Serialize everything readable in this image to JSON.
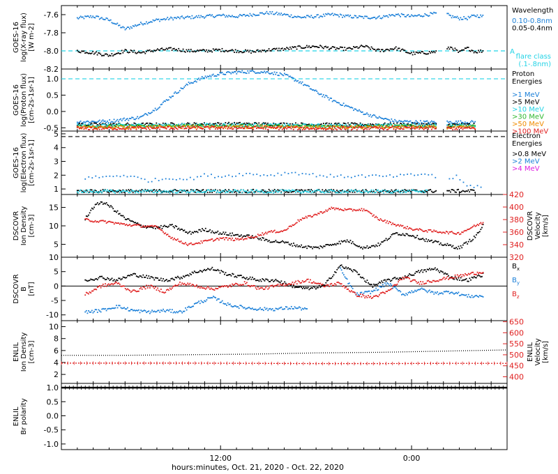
{
  "colors": {
    "axis": "#000000",
    "blue": "#1a7fd8",
    "black": "#000000",
    "cyan": "#22d3e6",
    "green": "#2eb82e",
    "orange": "#f08c00",
    "red": "#e02020",
    "magenta": "#e020e0"
  },
  "xaxis": {
    "title": "hours:minutes, Oct. 21, 2020 - Oct. 22, 2020",
    "ticks": [
      {
        "hour": 12,
        "label": "12:00"
      },
      {
        "hour": 24,
        "label": "0:00"
      }
    ],
    "range_hours": [
      2.0,
      30.0
    ]
  },
  "chart_data": [
    {
      "id": "xray",
      "type": "scatter",
      "ylabel": [
        "GOES-16",
        "log(X-ray flux)",
        "[W m-2]"
      ],
      "ylim": [
        -8.2,
        -7.5
      ],
      "yticks": [
        -7.6,
        -7.8,
        -8.0,
        -8.2
      ],
      "ytick_labels": [
        "-7.6",
        "-7.8",
        "-8.0",
        "-8.2"
      ],
      "legend": {
        "title": "Wavelength",
        "entries": [
          {
            "text": "0.10-0.8nm",
            "color": "blue"
          },
          {
            "text": "0.05-0.4nm",
            "color": "black"
          }
        ]
      },
      "threshold": {
        "value": -8.0,
        "color": "cyan",
        "label": "A",
        "note": [
          "flare class",
          "(.1-.8nm)"
        ]
      },
      "series": [
        {
          "color": "blue",
          "x": [
            3.0,
            4.0,
            5.0,
            6.0,
            7.0,
            8.0,
            9.0,
            10.0,
            11.0,
            12.0,
            13.0,
            14.0,
            15.0,
            16.0,
            17.0,
            18.0,
            19.0,
            20.0,
            21.0,
            22.0,
            23.0,
            24.0,
            25.0,
            26.0,
            26.5,
            27.0,
            27.5,
            28.0,
            28.5
          ],
          "y": [
            -7.64,
            -7.62,
            -7.66,
            -7.76,
            -7.7,
            -7.66,
            -7.64,
            -7.63,
            -7.62,
            -7.61,
            -7.62,
            -7.6,
            -7.58,
            -7.6,
            -7.63,
            -7.62,
            -7.6,
            -7.62,
            -7.63,
            -7.63,
            -7.6,
            -7.62,
            -7.6,
            -7.58,
            -7.62,
            -7.64,
            -7.64,
            -7.61,
            -7.62
          ]
        },
        {
          "color": "black",
          "x": [
            3.0,
            4.0,
            5.0,
            6.0,
            7.0,
            8.0,
            9.0,
            10.0,
            11.0,
            12.0,
            13.0,
            14.0,
            15.0,
            16.0,
            17.0,
            18.0,
            19.0,
            20.0,
            21.0,
            22.0,
            23.0,
            24.0,
            25.0,
            26.0,
            26.5,
            27.0,
            27.5,
            28.0,
            28.5
          ],
          "y": [
            -8.0,
            -8.02,
            -8.05,
            -8.0,
            -8.02,
            -7.99,
            -7.98,
            -8.0,
            -8.0,
            -7.99,
            -8.0,
            -8.01,
            -7.99,
            -7.98,
            -7.96,
            -7.95,
            -7.97,
            -7.98,
            -7.95,
            -8.0,
            -7.97,
            -8.03,
            -8.02,
            -8.0,
            -7.96,
            -8.02,
            -7.97,
            -8.01,
            -8.0
          ]
        }
      ]
    },
    {
      "id": "proton",
      "type": "scatter",
      "ylabel": [
        "GOES-16",
        "log(Proton flux)",
        "[cm-2s-1sr-1]"
      ],
      "ylim": [
        -0.6,
        1.3
      ],
      "yticks": [
        1.0,
        0.5,
        0.0,
        -0.5
      ],
      "ytick_labels": [
        "1.0",
        "0.5",
        "0.0",
        "-0.5"
      ],
      "legend": {
        "title": [
          "Proton",
          "Energies"
        ],
        "entries": [
          {
            "text": ">1 MeV",
            "color": "blue"
          },
          {
            "text": ">5 MeV",
            "color": "black"
          },
          {
            "text": ">10 MeV",
            "color": "cyan"
          },
          {
            "text": ">30 MeV",
            "color": "green"
          },
          {
            "text": ">50 MeV",
            "color": "orange"
          },
          {
            "text": ">100 MeV",
            "color": "red"
          }
        ]
      },
      "threshold": {
        "value": 1.0,
        "color": "cyan"
      },
      "series": [
        {
          "color": "blue",
          "x": [
            3.0,
            5.0,
            7.0,
            8.0,
            9.0,
            10.0,
            11.0,
            12.0,
            13.0,
            14.0,
            15.0,
            16.0,
            17.0,
            18.0,
            19.0,
            20.0,
            21.0,
            22.0,
            23.0,
            24.0,
            25.0,
            26.5,
            28.0
          ],
          "y": [
            -0.32,
            -0.3,
            -0.18,
            0.1,
            0.5,
            0.85,
            1.05,
            1.15,
            1.2,
            1.22,
            1.2,
            1.12,
            0.9,
            0.6,
            0.35,
            0.15,
            -0.05,
            -0.2,
            -0.3,
            -0.32,
            -0.33,
            -0.33,
            -0.33
          ]
        },
        {
          "color": "black",
          "x": [
            3.0,
            8.0,
            13.0,
            18.0,
            23.0,
            28.0
          ],
          "y": [
            -0.4,
            -0.4,
            -0.38,
            -0.4,
            -0.4,
            -0.41
          ]
        },
        {
          "color": "cyan",
          "x": [
            3.0,
            8.0,
            13.0,
            18.0,
            23.0,
            28.0
          ],
          "y": [
            -0.43,
            -0.42,
            -0.41,
            -0.43,
            -0.43,
            -0.43
          ]
        },
        {
          "color": "green",
          "x": [
            3.0,
            8.0,
            13.0,
            18.0,
            23.0,
            28.0
          ],
          "y": [
            -0.46,
            -0.45,
            -0.44,
            -0.46,
            -0.45,
            -0.46
          ]
        },
        {
          "color": "orange",
          "x": [
            3.0,
            8.0,
            13.0,
            18.0,
            23.0,
            28.0
          ],
          "y": [
            -0.49,
            -0.48,
            -0.47,
            -0.49,
            -0.48,
            -0.49
          ]
        },
        {
          "color": "red",
          "x": [
            3.0,
            8.0,
            13.0,
            18.0,
            23.0,
            28.0
          ],
          "y": [
            -0.52,
            -0.51,
            -0.5,
            -0.52,
            -0.51,
            -0.52
          ]
        }
      ]
    },
    {
      "id": "electron",
      "type": "scatter",
      "ylabel": [
        "GOES-16",
        "log(Electron flux)",
        "[cm-2s-1sr-1]"
      ],
      "ylim": [
        0.6,
        5.2
      ],
      "yticks": [
        5,
        4,
        3,
        2,
        1
      ],
      "ytick_labels": [
        "5",
        "4",
        "3",
        "2",
        "1"
      ],
      "legend": {
        "title": [
          "Electron",
          "Energies"
        ],
        "entries": [
          {
            "text": ">0.8 MeV",
            "color": "black"
          },
          {
            "text": ">2 MeV",
            "color": "blue"
          },
          {
            "text": ">4 MeV",
            "color": "magenta"
          }
        ]
      },
      "threshold": {
        "value": 4.8,
        "color": "black"
      },
      "series": [
        {
          "color": "blue",
          "x": [
            3.5,
            5.0,
            6.0,
            7.5,
            9.0,
            10.0,
            11.0,
            12.0,
            13.5,
            15.0,
            16.5,
            18.0,
            19.5,
            21.0,
            22.5,
            24.0,
            25.0,
            26.0,
            26.8,
            27.5,
            28.5
          ],
          "y": [
            1.8,
            1.9,
            2.0,
            1.6,
            1.8,
            1.7,
            2.0,
            1.9,
            2.1,
            2.0,
            2.2,
            2.0,
            1.9,
            1.95,
            1.9,
            2.0,
            2.1,
            1.6,
            1.9,
            1.2,
            1.2
          ]
        },
        {
          "color": "black",
          "x": [
            3.0,
            8.0,
            13.0,
            18.0,
            23.0,
            28.0
          ],
          "y": [
            0.85,
            0.85,
            0.85,
            0.85,
            0.85,
            0.85
          ]
        },
        {
          "color": "cyan",
          "x": [
            3.0,
            10.0,
            16.0,
            22.0,
            25.0
          ],
          "y": [
            0.82,
            0.82,
            0.82,
            0.82,
            0.82
          ]
        }
      ]
    },
    {
      "id": "dscovr_density",
      "type": "scatter",
      "ylabel": [
        "DSCOVR",
        "Ion Density",
        "[cm-3]"
      ],
      "ylim": [
        1.5,
        18.5
      ],
      "yticks": [
        15,
        10,
        5
      ],
      "ytick_labels": [
        "15",
        "10",
        "5"
      ],
      "ylabel_right": [
        "DSCOVR",
        "Velocity",
        "[km/s]"
      ],
      "ylim_right": [
        320,
        420
      ],
      "yticks_right": [
        420,
        400,
        380,
        360,
        340,
        320
      ],
      "ytick_labels_right": [
        "420",
        "400",
        "380",
        "360",
        "340",
        "320"
      ],
      "series": [
        {
          "color": "black",
          "axis": "left",
          "x": [
            3.5,
            4.0,
            4.5,
            5.0,
            6.0,
            7.0,
            8.0,
            9.0,
            10.0,
            11.0,
            12.0,
            13.0,
            14.0,
            15.0,
            16.0,
            17.0,
            18.0,
            19.0,
            20.0,
            21.0,
            22.0,
            23.0,
            24.0,
            25.0,
            26.0,
            27.0,
            28.0,
            28.5
          ],
          "y": [
            12.0,
            15.0,
            16.5,
            15.5,
            12.0,
            10.0,
            9.5,
            10.0,
            8.0,
            9.0,
            8.0,
            7.5,
            7.0,
            6.0,
            5.5,
            4.5,
            4.0,
            5.0,
            6.0,
            4.0,
            5.0,
            8.0,
            7.5,
            6.0,
            5.0,
            4.0,
            7.0,
            10.0
          ]
        },
        {
          "color": "red",
          "axis": "right",
          "x": [
            3.5,
            4.0,
            5.0,
            6.0,
            7.0,
            8.0,
            9.0,
            10.0,
            11.0,
            12.0,
            13.0,
            14.0,
            15.0,
            16.0,
            17.0,
            18.0,
            19.0,
            20.0,
            21.0,
            22.0,
            23.0,
            24.0,
            25.0,
            26.0,
            27.0,
            28.0,
            28.5
          ],
          "y": [
            380,
            378,
            376,
            372,
            370,
            368,
            350,
            340,
            345,
            350,
            348,
            352,
            360,
            362,
            380,
            388,
            398,
            395,
            396,
            380,
            372,
            365,
            362,
            360,
            358,
            370,
            375
          ]
        }
      ]
    },
    {
      "id": "dscovr_b",
      "type": "scatter",
      "ylabel": [
        "DSCOVR",
        "B",
        "[nT]"
      ],
      "ylim": [
        -12,
        10
      ],
      "yticks": [
        10,
        5,
        0,
        -5,
        -10
      ],
      "ytick_labels": [
        "10",
        "5",
        "0",
        "-5",
        "-10"
      ],
      "zero_line": true,
      "legend": {
        "entries": [
          {
            "text": "B",
            "sub": "x",
            "color": "black"
          },
          {
            "text": "B",
            "sub": "y",
            "color": "blue"
          },
          {
            "text": "B",
            "sub": "z",
            "color": "red"
          }
        ]
      },
      "series": [
        {
          "color": "black",
          "x": [
            3.5,
            4.5,
            5.5,
            6.5,
            7.5,
            8.5,
            9.5,
            10.5,
            11.5,
            12.5,
            13.5,
            14.5,
            15.5,
            16.5,
            17.5,
            18.5,
            19.5,
            20.5,
            21.5,
            22.5,
            23.5,
            24.5,
            25.5,
            26.5,
            27.5,
            28.5
          ],
          "y": [
            2.0,
            3.0,
            2.0,
            4.0,
            3.0,
            2.0,
            3.0,
            5.0,
            6.0,
            4.0,
            3.0,
            2.0,
            2.0,
            0.0,
            -1.0,
            0.0,
            7.0,
            5.0,
            0.0,
            2.0,
            3.0,
            5.0,
            6.0,
            3.0,
            2.0,
            4.0
          ]
        },
        {
          "color": "blue",
          "x": [
            3.5,
            4.5,
            5.5,
            6.5,
            7.5,
            8.5,
            9.5,
            10.5,
            11.5,
            12.5,
            13.5,
            14.5,
            15.5,
            16.5,
            17.5,
            18.5,
            19.5,
            20.5,
            21.5,
            22.5,
            23.5,
            24.5,
            25.5,
            26.5,
            27.5,
            28.5
          ],
          "y": [
            -9.0,
            -8.5,
            -7.0,
            -8.5,
            -9.0,
            -8.5,
            -9.0,
            -6.0,
            -4.0,
            -6.5,
            -7.5,
            -8.0,
            -8.0,
            -7.5,
            -8.0,
            null,
            6.0,
            -3.0,
            -2.0,
            1.0,
            -3.0,
            -1.0,
            -2.5,
            -2.0,
            -3.5,
            -3.5
          ]
        },
        {
          "color": "red",
          "x": [
            3.5,
            4.5,
            5.5,
            6.5,
            7.5,
            8.5,
            9.5,
            10.5,
            11.5,
            12.5,
            13.5,
            14.5,
            15.5,
            16.5,
            17.5,
            18.5,
            19.5,
            20.5,
            21.5,
            22.5,
            23.5,
            24.5,
            25.5,
            26.5,
            27.5,
            28.5
          ],
          "y": [
            -3.0,
            0.0,
            1.0,
            -2.0,
            0.0,
            -2.0,
            1.0,
            0.0,
            -1.0,
            0.0,
            1.0,
            -1.0,
            0.0,
            1.0,
            2.0,
            0.0,
            1.0,
            -3.0,
            -4.0,
            -2.0,
            3.0,
            1.0,
            2.0,
            3.0,
            4.0,
            5.0
          ]
        }
      ]
    },
    {
      "id": "enlil_density",
      "type": "line",
      "ylabel": [
        "ENLIL",
        "Ion Density",
        "[cm-3]"
      ],
      "ylim": [
        0.5,
        11.0
      ],
      "yticks": [
        10,
        8,
        6,
        4,
        2
      ],
      "ytick_labels": [
        "10",
        "8",
        "6",
        "4",
        "2"
      ],
      "ylabel_right": [
        "ENLIL",
        "Velocity",
        "[km/s]"
      ],
      "ylim_right": [
        370,
        655
      ],
      "yticks_right": [
        650,
        600,
        550,
        500,
        450,
        400
      ],
      "ytick_labels_right": [
        "650",
        "600",
        "550",
        "500",
        "450",
        "400"
      ],
      "series": [
        {
          "color": "black",
          "axis": "left",
          "x": [
            2.0,
            6.0,
            10.0,
            14.0,
            18.0,
            22.0,
            26.0,
            30.0
          ],
          "y": [
            5.2,
            5.2,
            5.3,
            5.4,
            5.6,
            5.7,
            5.9,
            6.1
          ]
        },
        {
          "color": "red",
          "axis": "right",
          "x": [
            2.0,
            6.0,
            10.0,
            14.0,
            18.0,
            22.0,
            26.0,
            30.0
          ],
          "y": [
            462,
            462,
            462,
            461,
            460,
            460,
            461,
            461
          ]
        }
      ]
    },
    {
      "id": "enlil_polarity",
      "type": "line",
      "ylabel": [
        "ENLIL",
        "Br polarity"
      ],
      "ylim": [
        -1.2,
        1.15
      ],
      "yticks": [
        1.0,
        0.5,
        0.0,
        -0.5,
        -1.0
      ],
      "ytick_labels": [
        "1.0",
        "0.5",
        "0.0",
        "-0.5",
        "-1.0"
      ],
      "series": [
        {
          "color": "black",
          "x": [
            2.0,
            30.0
          ],
          "y": [
            1.0,
            1.0
          ]
        }
      ]
    }
  ]
}
